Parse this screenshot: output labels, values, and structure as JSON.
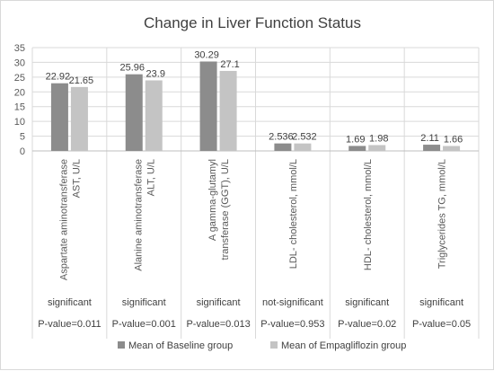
{
  "chart_data": {
    "type": "bar",
    "title": "Change in Liver Function Status",
    "categories": [
      "Aspartate aminotransferase AST, U/L",
      "Alanine aminotransferase ALT, U/L",
      "A gamma-glutamyl transferase (GGT), U/L",
      "LDL- cholesterol, mmol/L",
      "HDL- cholesterol, mmol/L",
      "Triglycerides TG, mmol/L"
    ],
    "significance": [
      "significant",
      "significant",
      "significant",
      "not-significant",
      "significant",
      "significant"
    ],
    "p_values": [
      "P-value=0.011",
      "P-value=0.001",
      "P-value=0.013",
      "P-value=0.953",
      "P-value=0.02",
      "P-value=0.05"
    ],
    "series": [
      {
        "name": "Mean of Baseline group",
        "color": "#8c8c8c",
        "values": [
          22.92,
          25.96,
          30.29,
          2.536,
          1.69,
          2.11
        ],
        "labels": [
          "22.92",
          "25.96",
          "30.29",
          "2.536",
          "1.69",
          "2.11"
        ]
      },
      {
        "name": "Mean of Empagliflozin group",
        "color": "#c4c4c4",
        "values": [
          21.65,
          23.9,
          27.1,
          2.532,
          1.98,
          1.66
        ],
        "labels": [
          "21.65",
          "23.9",
          "27.1",
          "2.532",
          "1.98",
          "1.66"
        ]
      }
    ],
    "ylim": [
      0,
      35
    ],
    "yticks": [
      0,
      5,
      10,
      15,
      20,
      25,
      30,
      35
    ],
    "grid": true,
    "legend": "bottom"
  }
}
